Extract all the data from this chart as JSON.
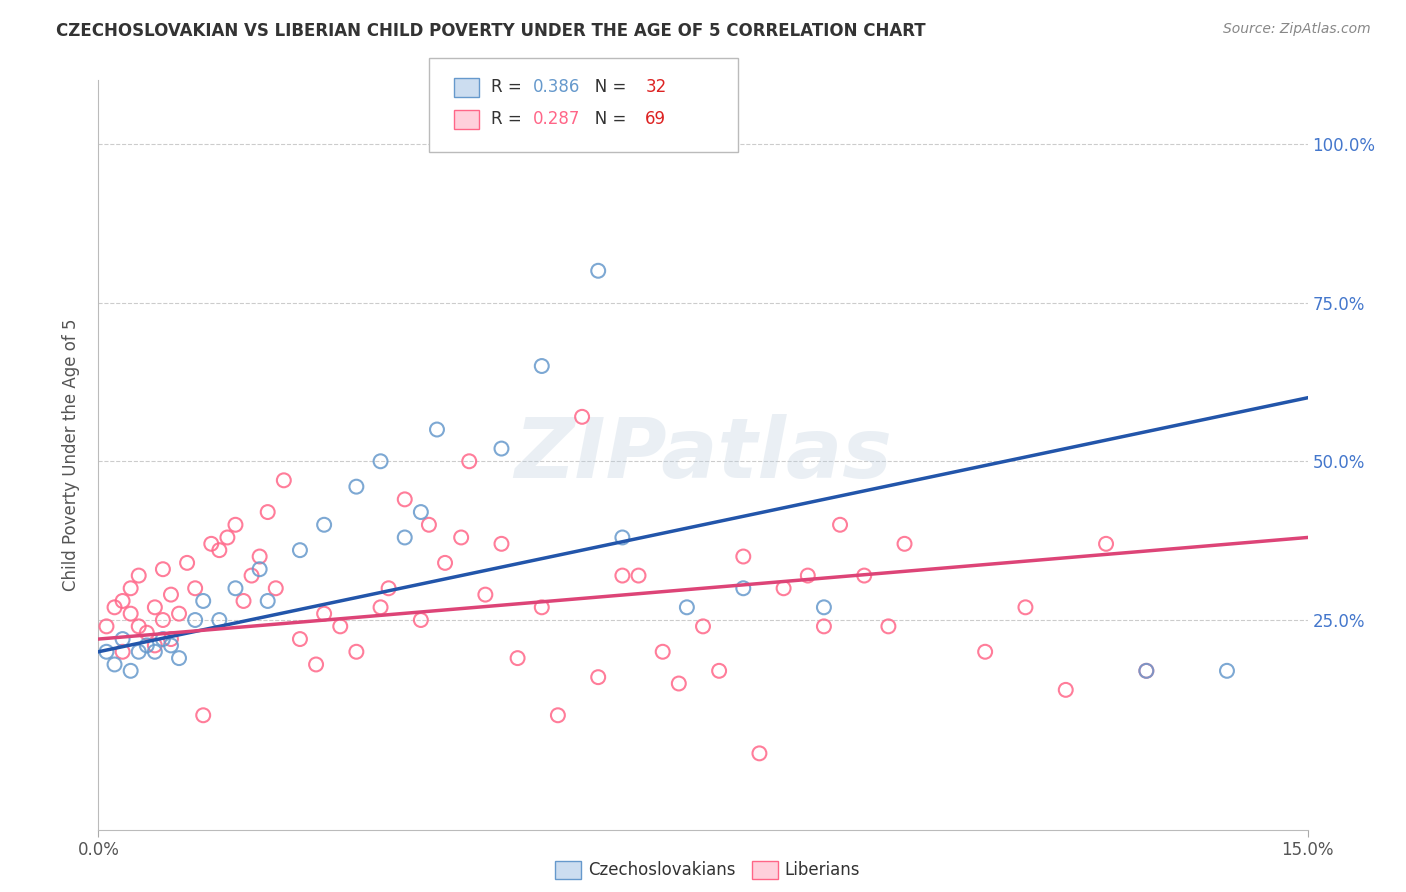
{
  "title": "CZECHOSLOVAKIAN VS LIBERIAN CHILD POVERTY UNDER THE AGE OF 5 CORRELATION CHART",
  "source": "Source: ZipAtlas.com",
  "ylabel": "Child Poverty Under the Age of 5",
  "x_min": 0.0,
  "x_max": 0.15,
  "y_min": -0.08,
  "y_max": 1.1,
  "czech_color": "#6699CC",
  "liberian_color": "#FF6688",
  "czech_line_color": "#2255AA",
  "liberian_line_color": "#DD4477",
  "czech_R": 0.386,
  "czech_N": 32,
  "liberian_R": 0.287,
  "liberian_N": 69,
  "legend_label_czech": "Czechoslovakians",
  "legend_label_liberian": "Liberians",
  "czech_x": [
    0.001,
    0.002,
    0.003,
    0.004,
    0.005,
    0.006,
    0.007,
    0.008,
    0.009,
    0.01,
    0.012,
    0.013,
    0.015,
    0.017,
    0.02,
    0.021,
    0.025,
    0.028,
    0.032,
    0.035,
    0.038,
    0.04,
    0.042,
    0.05,
    0.055,
    0.062,
    0.065,
    0.073,
    0.08,
    0.09,
    0.13,
    0.14
  ],
  "czech_y": [
    0.2,
    0.18,
    0.22,
    0.17,
    0.2,
    0.21,
    0.2,
    0.22,
    0.21,
    0.19,
    0.25,
    0.28,
    0.25,
    0.3,
    0.33,
    0.28,
    0.36,
    0.4,
    0.46,
    0.5,
    0.38,
    0.42,
    0.55,
    0.52,
    0.65,
    0.8,
    0.38,
    0.27,
    0.3,
    0.27,
    0.17,
    0.17
  ],
  "liberian_x": [
    0.001,
    0.002,
    0.003,
    0.003,
    0.004,
    0.004,
    0.005,
    0.005,
    0.006,
    0.007,
    0.007,
    0.008,
    0.008,
    0.009,
    0.009,
    0.01,
    0.011,
    0.012,
    0.013,
    0.014,
    0.015,
    0.016,
    0.017,
    0.018,
    0.019,
    0.02,
    0.021,
    0.022,
    0.023,
    0.025,
    0.027,
    0.028,
    0.03,
    0.032,
    0.035,
    0.036,
    0.038,
    0.04,
    0.041,
    0.043,
    0.045,
    0.046,
    0.048,
    0.05,
    0.052,
    0.055,
    0.057,
    0.06,
    0.062,
    0.065,
    0.067,
    0.07,
    0.072,
    0.075,
    0.077,
    0.08,
    0.082,
    0.085,
    0.088,
    0.09,
    0.092,
    0.095,
    0.098,
    0.1,
    0.11,
    0.115,
    0.12,
    0.125,
    0.13
  ],
  "liberian_y": [
    0.24,
    0.27,
    0.28,
    0.2,
    0.26,
    0.3,
    0.24,
    0.32,
    0.23,
    0.21,
    0.27,
    0.25,
    0.33,
    0.22,
    0.29,
    0.26,
    0.34,
    0.3,
    0.1,
    0.37,
    0.36,
    0.38,
    0.4,
    0.28,
    0.32,
    0.35,
    0.42,
    0.3,
    0.47,
    0.22,
    0.18,
    0.26,
    0.24,
    0.2,
    0.27,
    0.3,
    0.44,
    0.25,
    0.4,
    0.34,
    0.38,
    0.5,
    0.29,
    0.37,
    0.19,
    0.27,
    0.1,
    0.57,
    0.16,
    0.32,
    0.32,
    0.2,
    0.15,
    0.24,
    0.17,
    0.35,
    0.04,
    0.3,
    0.32,
    0.24,
    0.4,
    0.32,
    0.24,
    0.37,
    0.2,
    0.27,
    0.14,
    0.37,
    0.17
  ],
  "czech_line_x0": 0.0,
  "czech_line_y0": 0.2,
  "czech_line_x1": 0.15,
  "czech_line_y1": 0.6,
  "liberian_line_x0": 0.0,
  "liberian_line_y0": 0.22,
  "liberian_line_x1": 0.15,
  "liberian_line_y1": 0.38,
  "watermark": "ZIPatlas",
  "background_color": "#FFFFFF",
  "grid_color": "#CCCCCC",
  "marker_size": 100,
  "marker_linewidth": 1.5,
  "line_width": 2.5
}
